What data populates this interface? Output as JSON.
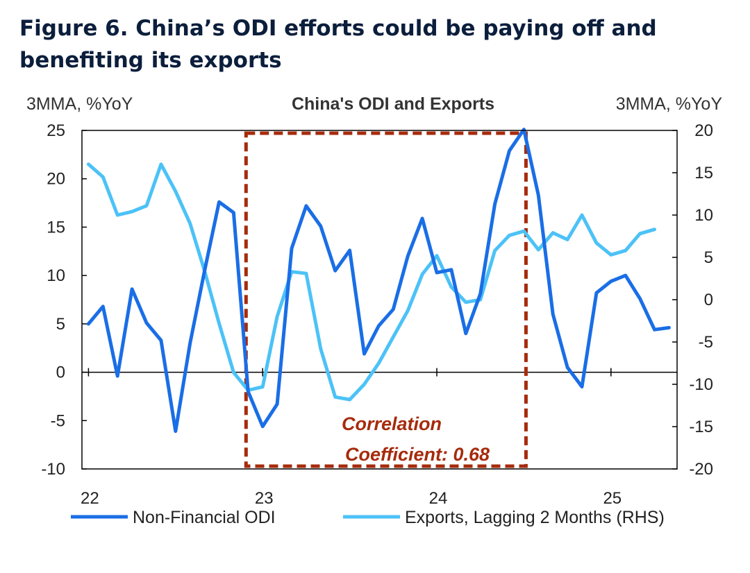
{
  "figure": {
    "title_line1": "Figure 6. China’s ODI efforts could be paying off and",
    "title_line2": "benefiting its exports"
  },
  "chart_data": {
    "type": "line",
    "title": "China's ODI and Exports",
    "left_unit": "3MMA, %YoY",
    "right_unit": "3MMA, %YoY",
    "y_left": {
      "lim": [
        -10,
        25
      ],
      "ticks": [
        "-10",
        "-5",
        "0",
        "5",
        "10",
        "15",
        "20",
        "25"
      ],
      "tick_values": [
        -10,
        -5,
        0,
        5,
        10,
        15,
        20,
        25
      ]
    },
    "y_right": {
      "lim": [
        -20,
        20
      ],
      "ticks": [
        "-20",
        "-15",
        "-10",
        "-5",
        "0",
        "5",
        "10",
        "15",
        "20"
      ],
      "tick_values": [
        -20,
        -15,
        -10,
        -5,
        0,
        5,
        10,
        15,
        20
      ]
    },
    "x_ticks": [
      "22",
      "23",
      "24",
      "25"
    ],
    "x_tick_months": [
      0,
      12,
      24,
      36
    ],
    "grid": false,
    "legend_position": "bottom",
    "colors": {
      "odi": "#1a6ee6",
      "exports": "#4cc2f7",
      "annotation": "#a62b0c"
    },
    "series": [
      {
        "name": "Non-Financial ODI",
        "axis": "left",
        "start": "2022-01",
        "values": [
          5.0,
          6.8,
          -0.4,
          8.6,
          5.1,
          3.3,
          -6.1,
          3.0,
          10.5,
          17.6,
          16.5,
          -2.0,
          -5.6,
          -3.3,
          12.8,
          17.2,
          15.1,
          10.5,
          12.6,
          1.9,
          4.8,
          6.5,
          12.0,
          15.9,
          10.3,
          10.6,
          4.0,
          8.1,
          17.4,
          22.9,
          25.1,
          18.3,
          6.0,
          0.5,
          -1.5,
          8.2,
          9.4,
          10.0,
          7.6,
          4.4,
          4.6
        ]
      },
      {
        "name": "Exports, Lagging 2 Months (RHS)",
        "axis": "right",
        "start": "2022-01",
        "values": [
          16.0,
          14.5,
          10.0,
          10.4,
          11.1,
          16.0,
          12.8,
          9.0,
          3.4,
          -2.8,
          -8.6,
          -10.7,
          -10.3,
          -2.0,
          3.3,
          3.1,
          -5.8,
          -11.5,
          -11.8,
          -10.0,
          -7.5,
          -4.4,
          -1.3,
          3.0,
          5.2,
          1.5,
          -0.3,
          0.0,
          5.8,
          7.6,
          8.1,
          5.9,
          7.9,
          7.1,
          10.0,
          6.7,
          5.3,
          5.8,
          7.8,
          8.3
        ]
      }
    ],
    "highlight_range": {
      "start": "2022-12",
      "end": "2024-07"
    },
    "annotation": {
      "line1": "Correlation",
      "line2": "Coefficient: 0.68"
    }
  }
}
